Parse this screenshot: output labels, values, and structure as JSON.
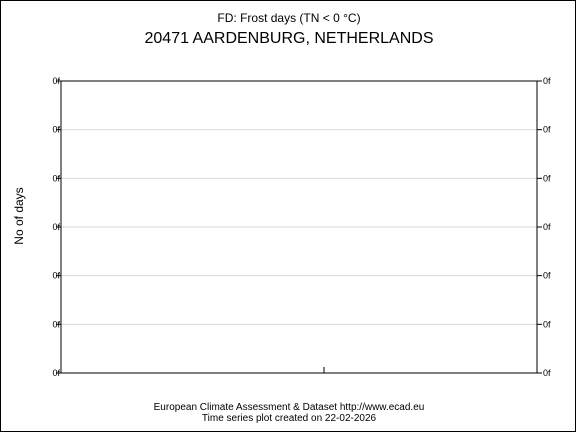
{
  "chart_data": {
    "type": "line",
    "title": "FD: Frost days (TN < 0 °C)",
    "subtitle": "20471 AARDENBURG, NETHERLANDS",
    "ylabel": "No of days",
    "y_tick_labels": [
      "0f",
      "0f",
      "0f",
      "0f",
      "0f",
      "0f",
      "0f"
    ],
    "series": [],
    "grid": true
  },
  "footer": {
    "line1": "European Climate Assessment & Dataset  http://www.ecad.eu",
    "line2": "Time series plot created on 22-02-2026"
  }
}
